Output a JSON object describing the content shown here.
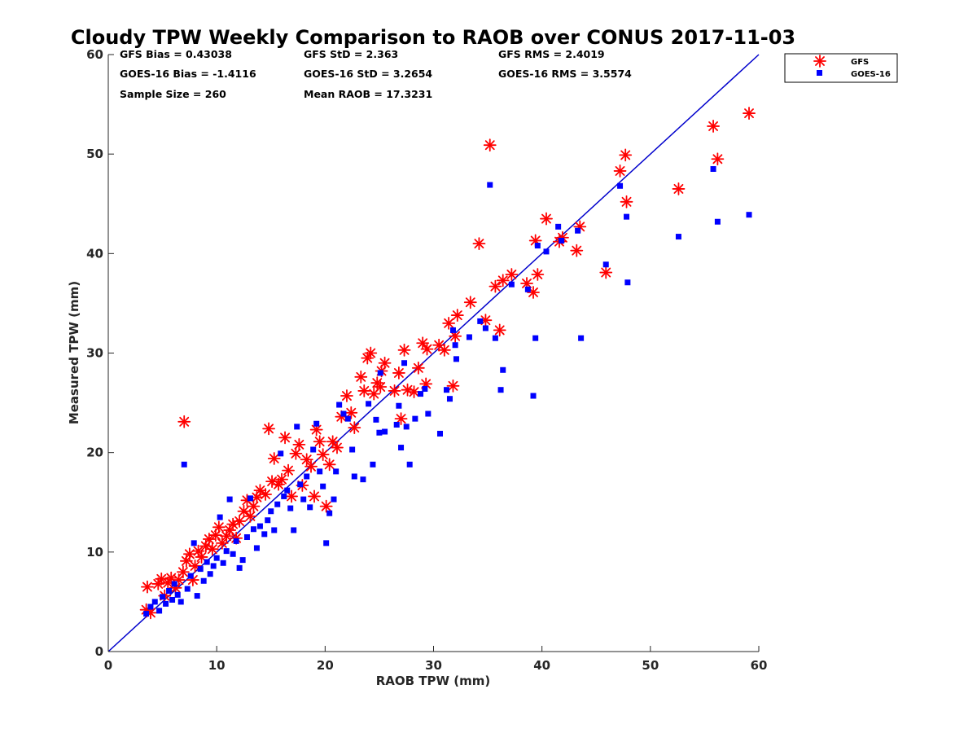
{
  "chart_data": {
    "type": "scatter",
    "title": "Cloudy TPW Weekly Comparison to RAOB over CONUS 2017-11-03",
    "xlabel": "RAOB TPW (mm)",
    "ylabel": "Measured TPW (mm)",
    "xlim": [
      0,
      60
    ],
    "ylim": [
      0,
      60
    ],
    "xticks": [
      "0",
      "10",
      "20",
      "30",
      "40",
      "50",
      "60"
    ],
    "yticks": [
      "0",
      "10",
      "20",
      "30",
      "40",
      "50",
      "60"
    ],
    "grid": false,
    "legend_position": "outside top-right",
    "colors": {
      "gfs": "#ff0000",
      "goes": "#0000ff",
      "line": "#0000cc"
    },
    "stats": {
      "gfs_bias": "GFS Bias = 0.43038",
      "gfs_std": "GFS StD = 2.363",
      "gfs_rms": "GFS RMS = 2.4019",
      "goes_bias": "GOES-16 Bias = -1.4116",
      "goes_std": "GOES-16 StD = 3.2654",
      "goes_rms": "GOES-16 RMS = 3.5574",
      "sample_size": "Sample Size = 260",
      "mean_raob": "Mean RAOB = 17.3231"
    },
    "reference_line": {
      "from": [
        0,
        0
      ],
      "to": [
        60,
        60
      ]
    },
    "series": [
      {
        "name": "GFS",
        "marker": "asterisk",
        "points": [
          [
            3.5,
            4.2
          ],
          [
            3.6,
            6.5
          ],
          [
            3.9,
            3.9
          ],
          [
            4.6,
            6.8
          ],
          [
            4.9,
            7.3
          ],
          [
            5.2,
            5.6
          ],
          [
            5.5,
            6.9
          ],
          [
            5.8,
            7.4
          ],
          [
            6.2,
            6.4
          ],
          [
            6.5,
            7.2
          ],
          [
            6.9,
            8.0
          ],
          [
            7.0,
            23.1
          ],
          [
            7.2,
            9.1
          ],
          [
            7.5,
            9.8
          ],
          [
            7.8,
            7.2
          ],
          [
            8.0,
            8.6
          ],
          [
            8.3,
            10.1
          ],
          [
            8.6,
            9.5
          ],
          [
            9.0,
            10.6
          ],
          [
            9.3,
            11.3
          ],
          [
            9.6,
            10.3
          ],
          [
            9.9,
            11.7
          ],
          [
            10.2,
            12.5
          ],
          [
            10.5,
            10.9
          ],
          [
            10.9,
            11.6
          ],
          [
            11.2,
            12.2
          ],
          [
            11.5,
            12.8
          ],
          [
            11.8,
            11.4
          ],
          [
            12.1,
            13.1
          ],
          [
            12.5,
            14.1
          ],
          [
            12.8,
            15.2
          ],
          [
            13.1,
            13.6
          ],
          [
            13.4,
            14.6
          ],
          [
            13.7,
            15.5
          ],
          [
            14.0,
            16.2
          ],
          [
            14.5,
            15.8
          ],
          [
            14.8,
            22.4
          ],
          [
            15.1,
            17.1
          ],
          [
            15.3,
            19.4
          ],
          [
            15.7,
            16.8
          ],
          [
            16.0,
            17.3
          ],
          [
            16.3,
            21.5
          ],
          [
            16.6,
            18.2
          ],
          [
            16.9,
            15.6
          ],
          [
            17.3,
            19.9
          ],
          [
            17.6,
            20.8
          ],
          [
            17.9,
            16.7
          ],
          [
            18.3,
            19.3
          ],
          [
            18.7,
            18.6
          ],
          [
            19.0,
            15.6
          ],
          [
            19.2,
            22.3
          ],
          [
            19.5,
            21.1
          ],
          [
            19.8,
            19.8
          ],
          [
            20.1,
            14.6
          ],
          [
            20.4,
            18.8
          ],
          [
            20.7,
            21.1
          ],
          [
            21.1,
            20.5
          ],
          [
            21.5,
            23.6
          ],
          [
            22.0,
            25.7
          ],
          [
            22.4,
            24.0
          ],
          [
            22.7,
            22.5
          ],
          [
            23.3,
            27.6
          ],
          [
            23.6,
            26.2
          ],
          [
            23.9,
            29.5
          ],
          [
            24.2,
            30.0
          ],
          [
            24.5,
            25.9
          ],
          [
            24.8,
            27.0
          ],
          [
            25.1,
            26.6
          ],
          [
            25.2,
            28.2
          ],
          [
            25.5,
            29.0
          ],
          [
            26.4,
            26.2
          ],
          [
            26.8,
            28.0
          ],
          [
            27.0,
            23.4
          ],
          [
            27.3,
            30.3
          ],
          [
            27.6,
            26.3
          ],
          [
            28.2,
            26.1
          ],
          [
            28.6,
            28.5
          ],
          [
            29.0,
            31.0
          ],
          [
            29.4,
            30.4
          ],
          [
            29.3,
            26.9
          ],
          [
            30.5,
            30.8
          ],
          [
            31.0,
            30.3
          ],
          [
            31.4,
            33.0
          ],
          [
            31.8,
            26.7
          ],
          [
            32.0,
            31.7
          ],
          [
            32.2,
            33.8
          ],
          [
            33.4,
            35.1
          ],
          [
            34.2,
            41.0
          ],
          [
            34.8,
            33.3
          ],
          [
            35.2,
            50.9
          ],
          [
            35.7,
            36.7
          ],
          [
            36.1,
            32.3
          ],
          [
            36.4,
            37.3
          ],
          [
            37.2,
            37.9
          ],
          [
            38.6,
            37.0
          ],
          [
            39.2,
            36.1
          ],
          [
            39.4,
            41.3
          ],
          [
            39.6,
            37.9
          ],
          [
            40.4,
            43.5
          ],
          [
            41.6,
            41.2
          ],
          [
            41.9,
            41.6
          ],
          [
            43.2,
            40.3
          ],
          [
            43.5,
            42.7
          ],
          [
            45.9,
            38.1
          ],
          [
            47.2,
            48.3
          ],
          [
            47.7,
            49.9
          ],
          [
            47.8,
            45.2
          ],
          [
            52.6,
            46.5
          ],
          [
            55.8,
            52.8
          ],
          [
            56.2,
            49.5
          ],
          [
            59.1,
            54.1
          ]
        ]
      },
      {
        "name": "GOES-16",
        "marker": "square",
        "points": [
          [
            3.5,
            3.8
          ],
          [
            3.9,
            4.5
          ],
          [
            4.3,
            5.0
          ],
          [
            4.7,
            4.1
          ],
          [
            5.0,
            5.5
          ],
          [
            5.3,
            4.8
          ],
          [
            5.6,
            6.1
          ],
          [
            5.9,
            5.2
          ],
          [
            6.1,
            6.8
          ],
          [
            6.4,
            5.7
          ],
          [
            6.7,
            5.0
          ],
          [
            7.0,
            18.8
          ],
          [
            7.3,
            6.3
          ],
          [
            7.6,
            7.6
          ],
          [
            7.9,
            10.9
          ],
          [
            8.2,
            5.6
          ],
          [
            8.5,
            8.3
          ],
          [
            8.8,
            7.1
          ],
          [
            9.1,
            9.0
          ],
          [
            9.4,
            7.8
          ],
          [
            9.7,
            8.6
          ],
          [
            10.0,
            9.4
          ],
          [
            10.3,
            13.5
          ],
          [
            10.6,
            8.9
          ],
          [
            10.9,
            10.1
          ],
          [
            11.2,
            15.3
          ],
          [
            11.5,
            9.8
          ],
          [
            11.8,
            11.1
          ],
          [
            12.1,
            8.4
          ],
          [
            12.4,
            9.2
          ],
          [
            12.8,
            11.5
          ],
          [
            13.1,
            15.4
          ],
          [
            13.4,
            12.3
          ],
          [
            13.7,
            10.4
          ],
          [
            14.0,
            12.6
          ],
          [
            14.4,
            11.8
          ],
          [
            14.7,
            13.2
          ],
          [
            15.0,
            14.1
          ],
          [
            15.3,
            12.2
          ],
          [
            15.6,
            14.8
          ],
          [
            15.9,
            19.9
          ],
          [
            16.2,
            15.6
          ],
          [
            16.5,
            16.2
          ],
          [
            16.8,
            14.4
          ],
          [
            17.1,
            12.2
          ],
          [
            17.4,
            22.6
          ],
          [
            17.7,
            16.8
          ],
          [
            18.0,
            15.3
          ],
          [
            18.3,
            17.6
          ],
          [
            18.6,
            14.5
          ],
          [
            18.9,
            20.3
          ],
          [
            19.2,
            22.9
          ],
          [
            19.5,
            18.1
          ],
          [
            19.8,
            16.6
          ],
          [
            20.1,
            10.9
          ],
          [
            20.4,
            13.9
          ],
          [
            20.8,
            15.3
          ],
          [
            21.0,
            18.1
          ],
          [
            21.3,
            24.8
          ],
          [
            21.7,
            23.9
          ],
          [
            22.1,
            23.4
          ],
          [
            22.5,
            20.3
          ],
          [
            22.7,
            17.6
          ],
          [
            23.5,
            17.3
          ],
          [
            24.0,
            24.9
          ],
          [
            24.4,
            18.8
          ],
          [
            24.7,
            23.3
          ],
          [
            25.0,
            22.0
          ],
          [
            25.1,
            28.0
          ],
          [
            25.5,
            22.1
          ],
          [
            26.6,
            22.8
          ],
          [
            26.8,
            24.7
          ],
          [
            27.0,
            20.5
          ],
          [
            27.3,
            29.0
          ],
          [
            27.5,
            22.6
          ],
          [
            27.8,
            18.8
          ],
          [
            28.3,
            23.4
          ],
          [
            28.8,
            25.9
          ],
          [
            29.2,
            26.4
          ],
          [
            29.5,
            23.9
          ],
          [
            30.6,
            21.9
          ],
          [
            31.2,
            26.3
          ],
          [
            31.5,
            25.4
          ],
          [
            31.8,
            32.3
          ],
          [
            32.0,
            30.8
          ],
          [
            32.1,
            29.4
          ],
          [
            33.3,
            31.6
          ],
          [
            34.3,
            33.2
          ],
          [
            34.8,
            32.5
          ],
          [
            35.2,
            46.9
          ],
          [
            35.7,
            31.5
          ],
          [
            36.2,
            26.3
          ],
          [
            36.4,
            28.3
          ],
          [
            37.2,
            36.9
          ],
          [
            38.7,
            36.4
          ],
          [
            39.2,
            25.7
          ],
          [
            39.4,
            31.5
          ],
          [
            39.6,
            40.8
          ],
          [
            40.4,
            40.2
          ],
          [
            41.5,
            42.7
          ],
          [
            41.8,
            41.3
          ],
          [
            43.3,
            42.3
          ],
          [
            43.6,
            31.5
          ],
          [
            45.9,
            38.9
          ],
          [
            47.2,
            46.8
          ],
          [
            47.8,
            43.7
          ],
          [
            47.9,
            37.1
          ],
          [
            52.6,
            41.7
          ],
          [
            55.8,
            48.5
          ],
          [
            56.2,
            43.2
          ],
          [
            59.1,
            43.9
          ]
        ]
      }
    ]
  }
}
